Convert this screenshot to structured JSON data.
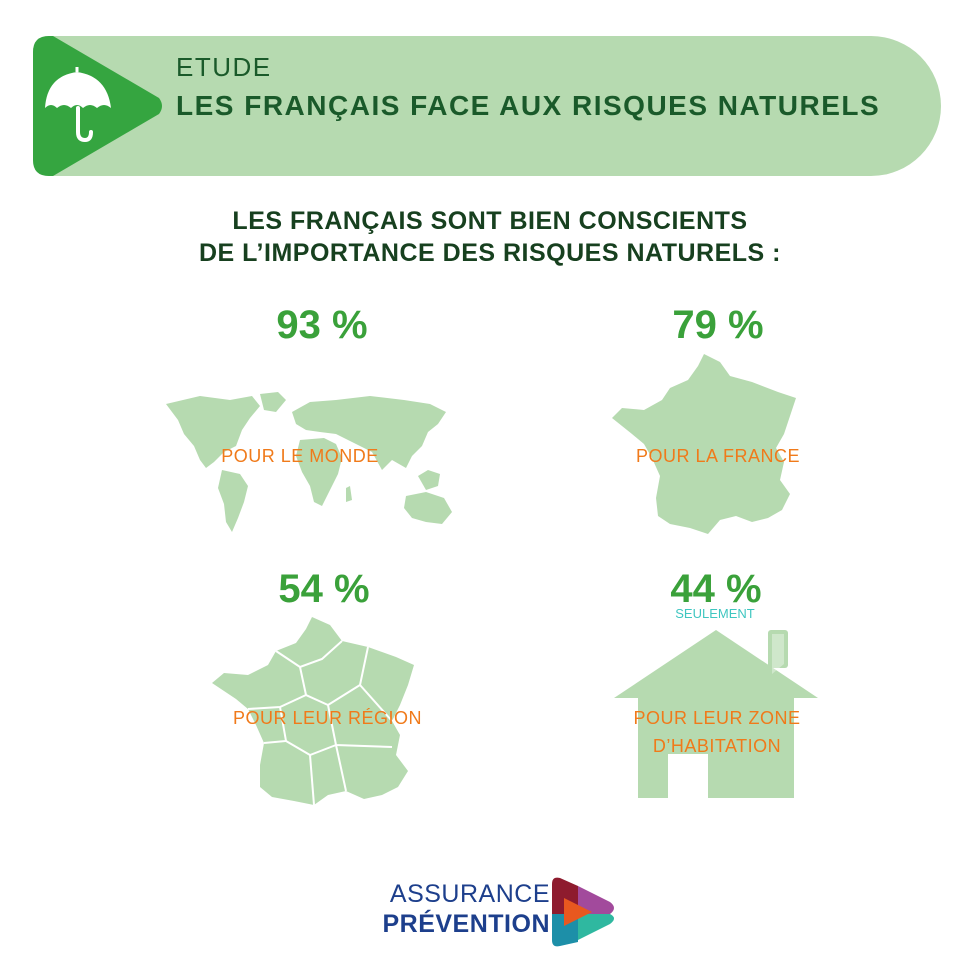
{
  "header": {
    "kicker": "ETUDE",
    "title": "LES FRANÇAIS FACE AUX RISQUES NATURELS",
    "icon": "umbrella-icon"
  },
  "intro": {
    "line1": "LES FRANÇAIS SONT BIEN CONSCIENTS",
    "line2": "DE L’IMPORTANCE DES RISQUES NATURELS :"
  },
  "stats": [
    {
      "value": "93 %",
      "label": "POUR LE MONDE",
      "icon": "world-map-icon"
    },
    {
      "value": "79 %",
      "label": "POUR LA FRANCE",
      "icon": "france-map-icon"
    },
    {
      "value": "54 %",
      "label": "POUR LEUR RÉGION",
      "icon": "france-regions-map-icon"
    },
    {
      "value": "44 %",
      "note": "SEULEMENT",
      "label_line1": "POUR LEUR ZONE",
      "label_line2": "D’HABITATION",
      "icon": "house-icon"
    }
  ],
  "brand": {
    "line1": "ASSURANCE",
    "line2": "PRÉVENTION"
  },
  "colors": {
    "banner": "#b6dab0",
    "accent_green": "#35a540",
    "stat_green": "#3aa13a",
    "dark_green": "#1a5a2a",
    "map_fill": "#b6dab0",
    "label_orange": "#f07a1a",
    "note_cyan": "#3fc6c0",
    "brand_blue": "#1d3f8c"
  }
}
